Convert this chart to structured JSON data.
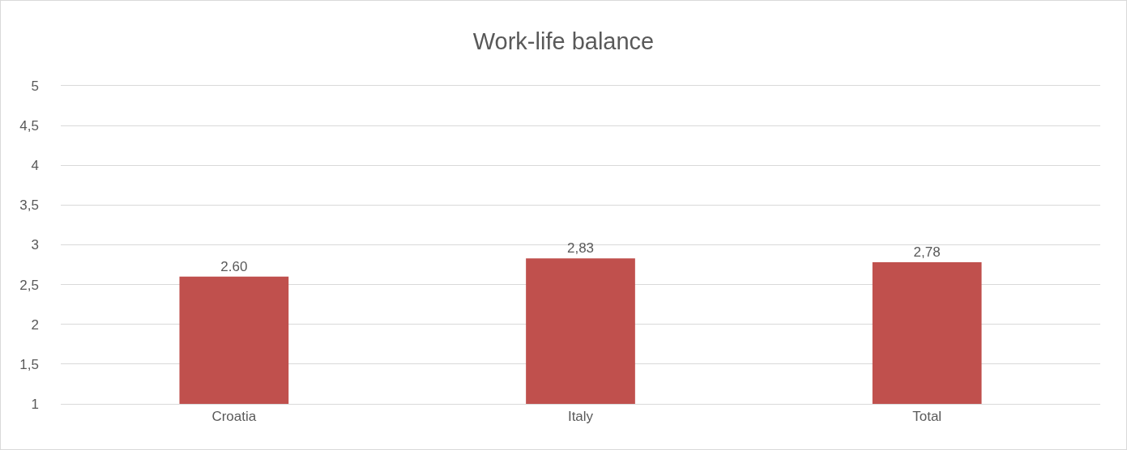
{
  "chart_data": {
    "type": "bar",
    "title": "Work-life balance",
    "categories": [
      "Croatia",
      "Italy",
      "Total"
    ],
    "values": [
      2.6,
      2.83,
      2.78
    ],
    "value_labels": [
      "2.60",
      "2,83",
      "2,78"
    ],
    "color": "#c0504d",
    "ylim": [
      1,
      5
    ],
    "yticks": [
      1,
      {
        "value": 1.5,
        "label": "1,5"
      },
      2,
      {
        "value": 2.5,
        "label": "2,5"
      },
      3,
      {
        "value": 3.5,
        "label": "3,5"
      },
      4,
      {
        "value": 4.5,
        "label": "4,5"
      },
      5
    ],
    "grid": "y"
  }
}
